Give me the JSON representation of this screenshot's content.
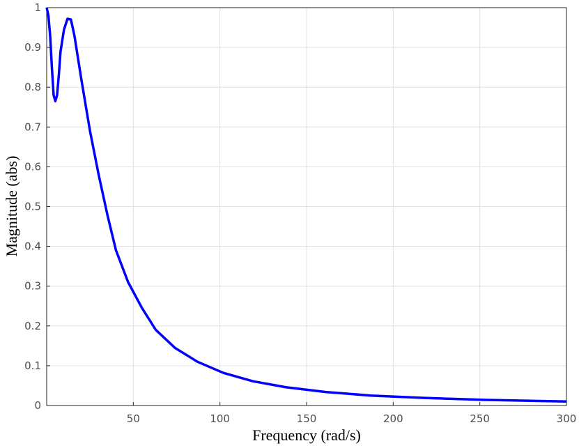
{
  "chart_data": {
    "type": "line",
    "xlabel": "Frequency  (rad/s)",
    "ylabel": "Magnitude (abs)",
    "x": [
      0,
      1,
      2,
      3,
      4,
      5,
      6,
      7,
      8,
      10,
      12,
      14,
      16,
      20,
      25,
      30,
      35,
      40,
      47,
      55,
      63,
      74,
      87,
      102,
      119,
      138,
      161,
      187,
      218,
      254,
      300
    ],
    "series": [
      {
        "color": "#0000ff",
        "values": [
          1,
          0.98,
          0.93,
          0.85,
          0.78,
          0.765,
          0.78,
          0.83,
          0.89,
          0.945,
          0.972,
          0.97,
          0.93,
          0.82,
          0.69,
          0.58,
          0.48,
          0.39,
          0.31,
          0.245,
          0.19,
          0.145,
          0.11,
          0.082,
          0.061,
          0.046,
          0.034,
          0.025,
          0.019,
          0.014,
          0.01
        ]
      }
    ],
    "xlim": [
      0,
      300
    ],
    "ylim": [
      0,
      1
    ],
    "xticks": [
      50,
      100,
      150,
      200,
      250,
      300
    ],
    "yticks": [
      0,
      0.1,
      0.2,
      0.3,
      0.4,
      0.5,
      0.6,
      0.7,
      0.8,
      0.9,
      1
    ],
    "grid": true
  }
}
